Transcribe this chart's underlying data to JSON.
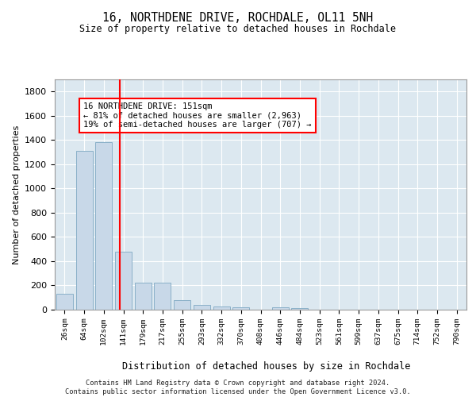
{
  "title": "16, NORTHDENE DRIVE, ROCHDALE, OL11 5NH",
  "subtitle": "Size of property relative to detached houses in Rochdale",
  "xlabel": "Distribution of detached houses by size in Rochdale",
  "ylabel": "Number of detached properties",
  "bin_labels": [
    "26sqm",
    "64sqm",
    "102sqm",
    "141sqm",
    "179sqm",
    "217sqm",
    "255sqm",
    "293sqm",
    "332sqm",
    "370sqm",
    "408sqm",
    "446sqm",
    "484sqm",
    "523sqm",
    "561sqm",
    "599sqm",
    "637sqm",
    "675sqm",
    "714sqm",
    "752sqm",
    "790sqm"
  ],
  "bar_values": [
    130,
    1310,
    1380,
    480,
    220,
    220,
    80,
    40,
    25,
    20,
    0,
    20,
    10,
    0,
    0,
    0,
    0,
    0,
    0,
    0,
    0
  ],
  "bar_color": "#c8d8e8",
  "bar_edge_color": "#8ab0c8",
  "ylim": [
    0,
    1900
  ],
  "yticks": [
    0,
    200,
    400,
    600,
    800,
    1000,
    1200,
    1400,
    1600,
    1800
  ],
  "property_sqm": 151,
  "annotation_line1": "16 NORTHDENE DRIVE: 151sqm",
  "annotation_line2": "← 81% of detached houses are smaller (2,963)",
  "annotation_line3": "19% of semi-detached houses are larger (707) →",
  "footer": "Contains HM Land Registry data © Crown copyright and database right 2024.\nContains public sector information licensed under the Open Government Licence v3.0.",
  "plot_bg_color": "#dce8f0"
}
